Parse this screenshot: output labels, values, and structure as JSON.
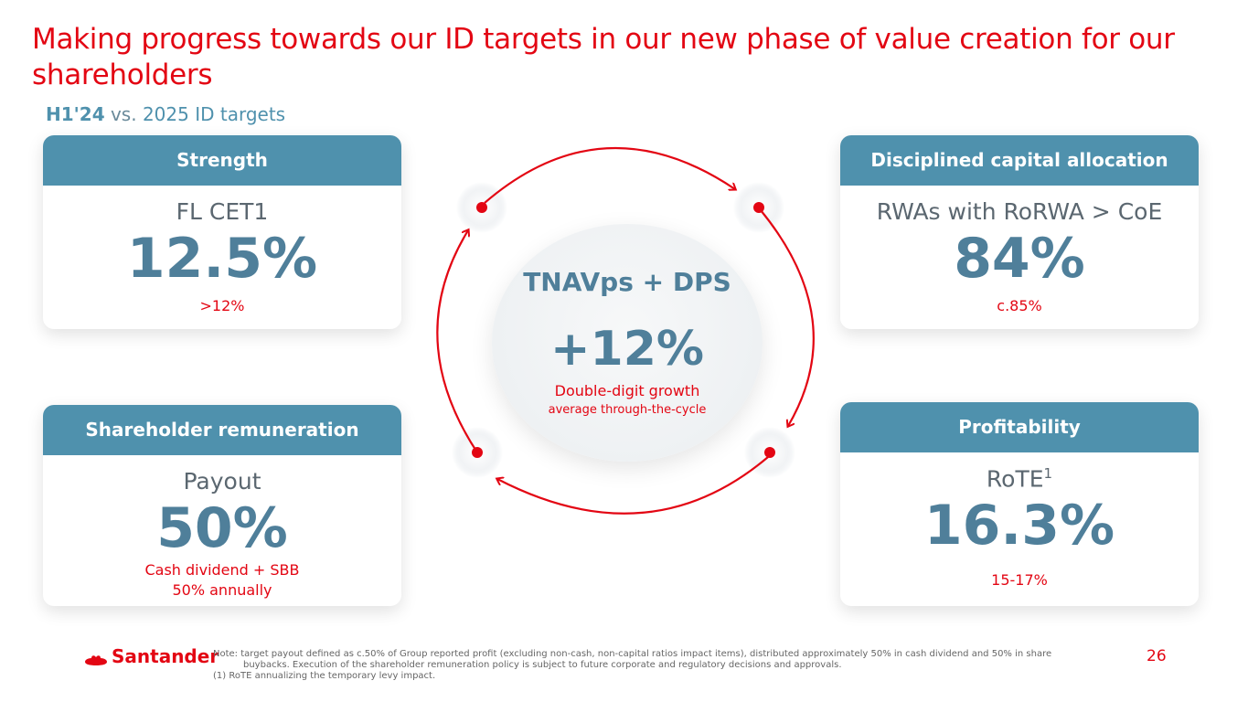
{
  "title": "Making progress towards our ID targets in our new phase of value creation for our shareholders",
  "subtitle": {
    "period": "H1'24",
    "vs": "vs.",
    "targets": "2025 ID targets"
  },
  "cards": {
    "strength": {
      "header": "Strength",
      "metric": "FL CET1",
      "value": "12.5%",
      "target": ">12%"
    },
    "capital": {
      "header": "Disciplined capital allocation",
      "metric": "RWAs with RoRWA > CoE",
      "value": "84%",
      "target": "c.85%"
    },
    "remuneration": {
      "header": "Shareholder remuneration",
      "metric": "Payout",
      "value": "50%",
      "target_line1": "Cash dividend + SBB",
      "target_line2": "50% annually"
    },
    "profitability": {
      "header": "Profitability",
      "metric": "RoTE",
      "metric_sup": "1",
      "value": "16.3%",
      "target": "15-17%"
    }
  },
  "center": {
    "label": "TNAVps + DPS",
    "value": "+12%",
    "note_line1": "Double-digit growth",
    "note_line2": "average through-the-cycle"
  },
  "footer": {
    "brand": "Santander",
    "note_line1": "Note: target payout defined as c.50% of Group reported profit (excluding non-cash, non-capital ratios impact items), distributed approximately 50% in cash dividend and 50% in share",
    "note_line2": "buybacks. Execution of the shareholder remuneration policy is subject to future corporate and regulatory decisions and approvals.",
    "note_line3": "(1) RoTE annualizing the temporary levy impact.",
    "page_number": "26"
  },
  "colors": {
    "brand_red": "#e30613",
    "header_blue": "#4f91ad",
    "value_blue": "#4f7f9a"
  }
}
